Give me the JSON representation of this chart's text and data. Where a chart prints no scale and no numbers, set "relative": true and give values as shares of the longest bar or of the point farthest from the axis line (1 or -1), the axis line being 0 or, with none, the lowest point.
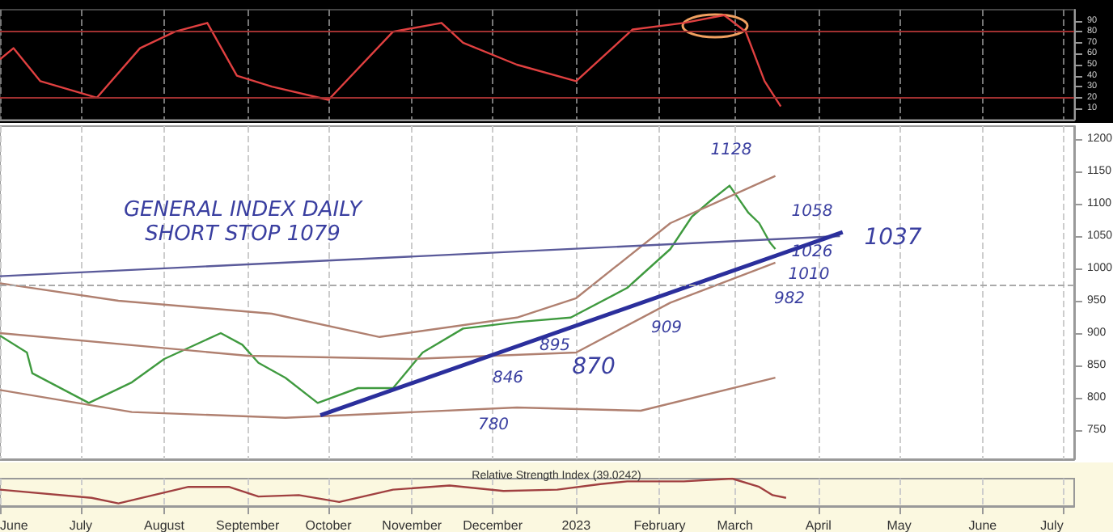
{
  "chart_data": [
    {
      "type": "line",
      "xlim": [
        "2022-06-01",
        "2023-07-05"
      ],
      "xticks": [
        {
          "value": "2022-06-01",
          "label": null
        },
        {
          "value": "2022-07-01",
          "label": null
        },
        {
          "value": "2022-08-01",
          "label": null
        },
        {
          "value": "2022-09-01",
          "label": null
        },
        {
          "value": "2022-10-01",
          "label": null
        },
        {
          "value": "2022-11-01",
          "label": null
        },
        {
          "value": "2022-12-01",
          "label": null
        },
        {
          "value": "2023-01-01",
          "label": null
        },
        {
          "value": "2023-02-01",
          "label": null
        },
        {
          "value": "2023-03-01",
          "label": null
        },
        {
          "value": "2023-04-01",
          "label": null
        },
        {
          "value": "2023-05-01",
          "label": null
        },
        {
          "value": "2023-06-01",
          "label": null
        },
        {
          "value": "2023-07-01",
          "label": null
        }
      ],
      "ylim": [
        0,
        100
      ],
      "yticks": [
        10,
        20,
        30,
        40,
        50,
        60,
        70,
        80,
        90
      ],
      "tick_labels": "y",
      "grid": "x",
      "marker": "none",
      "line_style": "solid",
      "ref_lines": [
        {
          "axis": "y",
          "value": 80,
          "color": "#a03030"
        },
        {
          "axis": "y",
          "value": 20,
          "color": "#a03030"
        }
      ],
      "series": [
        {
          "color": "#e04040",
          "x": [
            "2022-06-01",
            "2022-06-06",
            "2022-06-16",
            "2022-07-07",
            "2022-07-23",
            "2022-08-05",
            "2022-08-17",
            "2022-08-28",
            "2022-09-10",
            "2022-10-01",
            "2022-10-25",
            "2022-11-12",
            "2022-11-20",
            "2022-12-10",
            "2023-01-01",
            "2023-01-22",
            "2023-02-10",
            "2023-02-25",
            "2023-03-05",
            "2023-03-12",
            "2023-03-18"
          ],
          "values": [
            55,
            65,
            35,
            20,
            65,
            80,
            88,
            40,
            30,
            18,
            80,
            88,
            70,
            50,
            35,
            82,
            88,
            95,
            80,
            35,
            12
          ]
        }
      ]
    },
    {
      "type": "line",
      "xlim": [
        "2022-06-01",
        "2023-07-05"
      ],
      "xticks": [
        {
          "value": "2022-06-01",
          "label": null
        },
        {
          "value": "2022-07-01",
          "label": null
        },
        {
          "value": "2022-08-01",
          "label": null
        },
        {
          "value": "2022-09-01",
          "label": null
        },
        {
          "value": "2022-10-01",
          "label": null
        },
        {
          "value": "2022-11-01",
          "label": null
        },
        {
          "value": "2022-12-01",
          "label": null
        },
        {
          "value": "2023-01-01",
          "label": null
        },
        {
          "value": "2023-02-01",
          "label": null
        },
        {
          "value": "2023-03-01",
          "label": null
        },
        {
          "value": "2023-04-01",
          "label": null
        },
        {
          "value": "2023-05-01",
          "label": null
        },
        {
          "value": "2023-06-01",
          "label": null
        },
        {
          "value": "2023-07-01",
          "label": null
        }
      ],
      "ylim": [
        705,
        1220
      ],
      "yticks": [
        750,
        800,
        850,
        900,
        950,
        1000,
        1050,
        1100,
        1150,
        1200
      ],
      "tick_labels": "y",
      "grid": "x",
      "marker": "none",
      "line_style": "solid",
      "ref_lines": [
        {
          "axis": "y",
          "value": 975,
          "color": "#aaaaaa",
          "line_style": "dashed"
        }
      ],
      "series": [
        {
          "color": "#3f9a3f",
          "x": [
            "2022-06-01",
            "2022-06-11",
            "2022-06-13",
            "2022-07-04",
            "2022-07-20",
            "2022-08-01",
            "2022-08-22",
            "2022-08-30",
            "2022-09-05",
            "2022-09-15",
            "2022-09-27",
            "2022-10-12",
            "2022-10-25",
            "2022-11-05",
            "2022-11-20",
            "2022-12-10",
            "2022-12-30",
            "2023-01-20",
            "2023-02-05",
            "2023-02-13",
            "2023-02-20",
            "2023-02-27",
            "2023-03-06",
            "2023-03-10",
            "2023-03-14",
            "2023-03-16"
          ],
          "values": [
            896,
            870,
            838,
            792,
            824,
            860,
            900,
            882,
            854,
            831,
            792,
            815,
            815,
            870,
            907,
            917,
            924,
            970,
            1030,
            1080,
            1105,
            1128,
            1086,
            1070,
            1040,
            1030
          ]
        },
        {
          "color": "#b08070",
          "x": [
            "2022-06-01",
            "2022-07-15",
            "2022-09-10",
            "2022-10-20",
            "2022-12-10",
            "2023-01-01",
            "2023-02-05",
            "2023-03-16"
          ],
          "values": [
            977,
            950,
            930,
            894,
            924,
            954,
            1070,
            1143
          ]
        },
        {
          "color": "#b08070",
          "x": [
            "2022-06-01",
            "2022-09-01",
            "2022-11-01",
            "2023-01-01",
            "2023-02-05",
            "2023-03-16"
          ],
          "values": [
            900,
            865,
            860,
            870,
            947,
            1009
          ]
        },
        {
          "color": "#b08070",
          "x": [
            "2022-06-01",
            "2022-07-20",
            "2022-09-15",
            "2022-12-10",
            "2023-01-25",
            "2023-03-16"
          ],
          "values": [
            812,
            778,
            769,
            785,
            780,
            831
          ]
        },
        {
          "color": "#5a5a9a",
          "x": [
            "2022-06-01",
            "2023-04-09"
          ],
          "values": [
            988,
            1050
          ]
        },
        {
          "color": "#2b2f9c",
          "x": [
            "2022-09-28",
            "2023-04-10"
          ],
          "values": [
            773,
            1056
          ]
        }
      ],
      "annotations": [
        "GENERAL INDEX DAILY",
        "SHORT STOP 1079",
        "1128",
        "1058",
        "1037",
        "1026",
        "1010",
        "982",
        "909",
        "895",
        "870",
        "846",
        "780"
      ]
    },
    {
      "type": "line",
      "title": "Relative Strength Index (39.0242)",
      "relative": true,
      "xlim": [
        "2022-06-01",
        "2023-07-05"
      ],
      "xticks": [
        {
          "value": "2022-06-01",
          "label": "June"
        },
        {
          "value": "2022-07-01",
          "label": "July"
        },
        {
          "value": "2022-08-01",
          "label": "August"
        },
        {
          "value": "2022-09-01",
          "label": "September"
        },
        {
          "value": "2022-10-01",
          "label": "October"
        },
        {
          "value": "2022-11-01",
          "label": "November"
        },
        {
          "value": "2022-12-01",
          "label": "December"
        },
        {
          "value": "2023-01-01",
          "label": "2023"
        },
        {
          "value": "2023-02-01",
          "label": "February"
        },
        {
          "value": "2023-03-01",
          "label": "March"
        },
        {
          "value": "2023-04-01",
          "label": "April"
        },
        {
          "value": "2023-05-01",
          "label": "May"
        },
        {
          "value": "2023-06-01",
          "label": "June"
        },
        {
          "value": "2023-07-01",
          "label": "July"
        }
      ],
      "tick_labels": "x",
      "grid": "x",
      "marker": "none",
      "line_style": "solid",
      "series": [
        {
          "color": "#a04040",
          "x": [
            "2022-06-01",
            "2022-07-05",
            "2022-07-15",
            "2022-08-10",
            "2022-08-25",
            "2022-09-05",
            "2022-09-20",
            "2022-10-05",
            "2022-10-25",
            "2022-11-15",
            "2022-12-05",
            "2022-12-25",
            "2023-01-10",
            "2023-01-20",
            "2023-02-10",
            "2023-02-28",
            "2023-03-10",
            "2023-03-15",
            "2023-03-20"
          ],
          "values": [
            0.6,
            0.3,
            0.1,
            0.7,
            0.7,
            0.35,
            0.4,
            0.15,
            0.6,
            0.75,
            0.55,
            0.6,
            0.8,
            0.9,
            0.9,
            1,
            0.7,
            0.4,
            0.3
          ]
        }
      ]
    }
  ]
}
